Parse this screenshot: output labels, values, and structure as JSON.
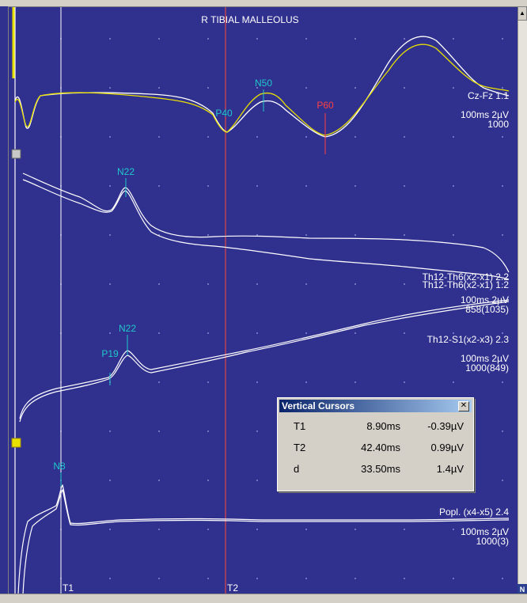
{
  "title": "R TIBIAL MALLEOLUS",
  "colors": {
    "background": "#30308f",
    "trace": "#ffffff",
    "trace_highlight": "#e8e000",
    "marker_cyan": "#20c8c8",
    "marker_red": "#ff4040",
    "cursor_t2": "#ff4a3a",
    "cursor_t1": "#ffffff"
  },
  "cursors": {
    "t1_label": "T1",
    "t2_label": "T2"
  },
  "channels": [
    {
      "name": "Cz-Fz 1.1",
      "scale": "100ms 2µV",
      "averages": "1000",
      "peaks": [
        "P40",
        "N50",
        "P60"
      ]
    },
    {
      "name": "Th12-Th6(x2-x1) 1.2",
      "name_overlap": "Th12-Th6(x2-x1) 2.2",
      "scale": "100ms 2µV",
      "averages": "858(1035)",
      "peaks": [
        "N22"
      ]
    },
    {
      "name": "Th12-S1(x2-x3) 2.3",
      "scale": "100ms 2µV",
      "averages": "1000(849)",
      "peaks": [
        "P19",
        "N22"
      ]
    },
    {
      "name": "Popl. (x4-x5) 2.4",
      "scale": "100ms 2µV",
      "averages": "1000(3)",
      "peaks": [
        "N8"
      ]
    }
  ],
  "vertical_cursors": {
    "title": "Vertical Cursors",
    "close_glyph": "✕",
    "rows": [
      {
        "label": "T1",
        "time": "8.90ms",
        "voltage": "-0.39µV"
      },
      {
        "label": "T2",
        "time": "42.40ms",
        "voltage": "0.99µV"
      },
      {
        "label": "d",
        "time": "33.50ms",
        "voltage": "1.4µV"
      }
    ]
  },
  "corner_glyph": "N"
}
